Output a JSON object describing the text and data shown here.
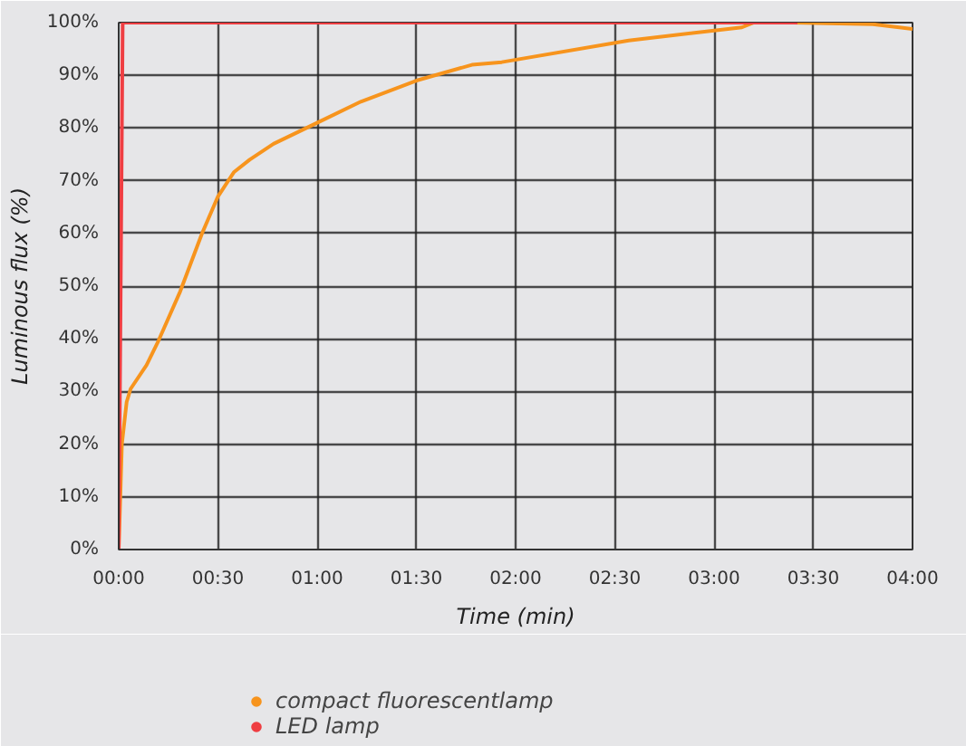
{
  "chart_data": {
    "type": "line",
    "xlabel": "Time (min)",
    "ylabel": "Luminous flux (%)",
    "xlim": [
      0,
      4
    ],
    "ylim": [
      0,
      100
    ],
    "xticks": [
      {
        "value": 0,
        "label": "00:00"
      },
      {
        "value": 0.5,
        "label": "00:30"
      },
      {
        "value": 1,
        "label": "01:00"
      },
      {
        "value": 1.5,
        "label": "01:30"
      },
      {
        "value": 2,
        "label": "02:00"
      },
      {
        "value": 2.5,
        "label": "02:30"
      },
      {
        "value": 3,
        "label": "03:00"
      },
      {
        "value": 3.5,
        "label": "03:30"
      },
      {
        "value": 4,
        "label": "04:00"
      }
    ],
    "yticks": [
      {
        "value": 0,
        "label": "0%"
      },
      {
        "value": 10,
        "label": "10%"
      },
      {
        "value": 20,
        "label": "20%"
      },
      {
        "value": 30,
        "label": "30%"
      },
      {
        "value": 40,
        "label": "40%"
      },
      {
        "value": 50,
        "label": "50%"
      },
      {
        "value": 60,
        "label": "60%"
      },
      {
        "value": 70,
        "label": "70%"
      },
      {
        "value": 80,
        "label": "80%"
      },
      {
        "value": 90,
        "label": "90%"
      },
      {
        "value": 100,
        "label": "100%"
      }
    ],
    "grid": true,
    "legend": "bottom",
    "marker": "none",
    "line_style": "solid",
    "series": [
      {
        "name": "compact fluorescentlamp",
        "color": "#f7941d",
        "x": [
          0,
          0.016,
          0.04,
          0.06,
          0.14,
          0.2,
          0.31,
          0.42,
          0.5,
          0.58,
          0.66,
          0.78,
          1.0,
          1.22,
          1.5,
          1.78,
          1.93,
          2.57,
          3.14,
          3.2,
          3.4,
          3.8,
          4.0
        ],
        "values": [
          0,
          20,
          28,
          30.5,
          35,
          39.6,
          49,
          60,
          67,
          71.6,
          74,
          77,
          81,
          85,
          89,
          92,
          92.5,
          96.6,
          99.1,
          100,
          100,
          99.7,
          98.8
        ]
      },
      {
        "name": "LED lamp",
        "color": "#ef3e42",
        "x": [
          0,
          0.02,
          3.42
        ],
        "values": [
          0,
          100,
          100
        ]
      }
    ]
  }
}
